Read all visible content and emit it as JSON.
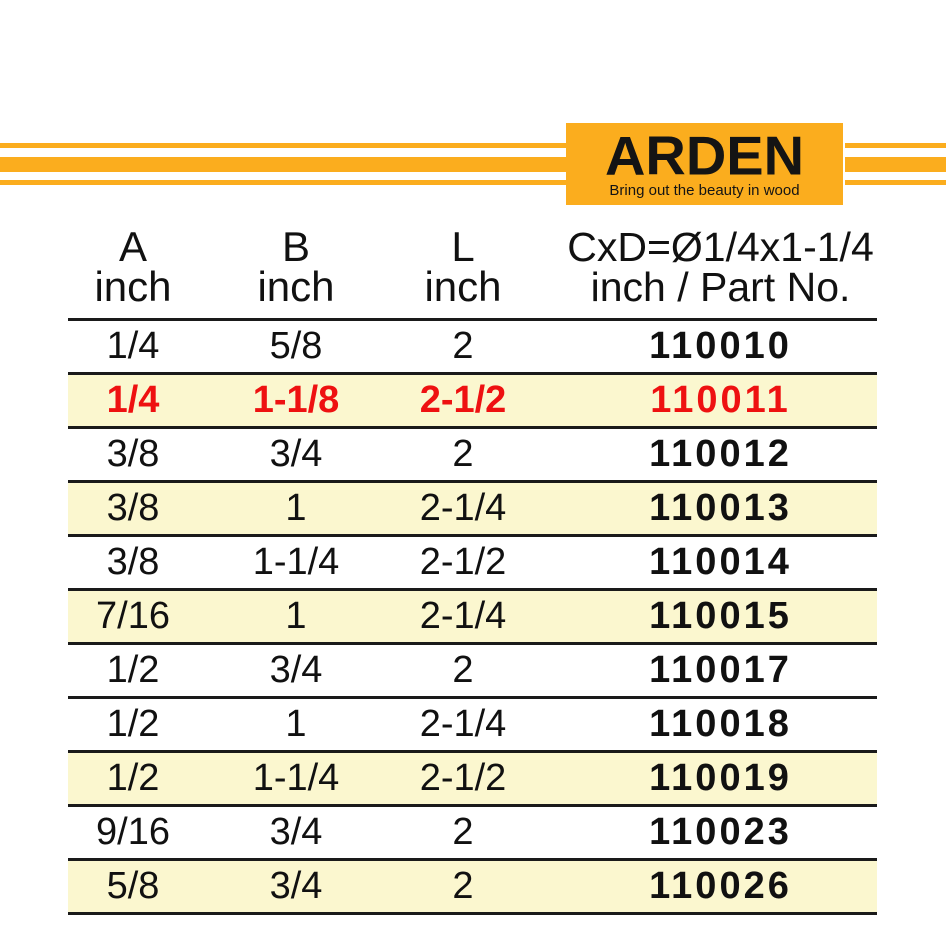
{
  "colors": {
    "orange": "#FBAD1E",
    "row_shade": "#FBF7CF",
    "highlight_text": "#EE1111",
    "rule": "#1A1A1A"
  },
  "logo": {
    "brand": "ARDEN",
    "tagline": "Bring out the beauty in wood"
  },
  "table": {
    "header": {
      "columns": [
        {
          "line1": "A",
          "line2": "inch"
        },
        {
          "line1": "B",
          "line2": "inch"
        },
        {
          "line1": "L",
          "line2": "inch"
        },
        {
          "line1": "CxD=Ø1/4x1-1/4",
          "line2": "inch / Part No."
        }
      ]
    },
    "rows": [
      {
        "a": "1/4",
        "b": "5/8",
        "l": "2",
        "part": "110010",
        "shaded": false,
        "highlight": false
      },
      {
        "a": "1/4",
        "b": "1-1/8",
        "l": "2-1/2",
        "part": "110011",
        "shaded": true,
        "highlight": true
      },
      {
        "a": "3/8",
        "b": "3/4",
        "l": "2",
        "part": "110012",
        "shaded": false,
        "highlight": false
      },
      {
        "a": "3/8",
        "b": "1",
        "l": "2-1/4",
        "part": "110013",
        "shaded": true,
        "highlight": false
      },
      {
        "a": "3/8",
        "b": "1-1/4",
        "l": "2-1/2",
        "part": "110014",
        "shaded": false,
        "highlight": false
      },
      {
        "a": "7/16",
        "b": "1",
        "l": "2-1/4",
        "part": "110015",
        "shaded": true,
        "highlight": false
      },
      {
        "a": "1/2",
        "b": "3/4",
        "l": "2",
        "part": "110017",
        "shaded": false,
        "highlight": false
      },
      {
        "a": "1/2",
        "b": "1",
        "l": "2-1/4",
        "part": "110018",
        "shaded": false,
        "highlight": false
      },
      {
        "a": "1/2",
        "b": "1-1/4",
        "l": "2-1/2",
        "part": "110019",
        "shaded": true,
        "highlight": false
      },
      {
        "a": "9/16",
        "b": "3/4",
        "l": "2",
        "part": "110023",
        "shaded": false,
        "highlight": false
      },
      {
        "a": "5/8",
        "b": "3/4",
        "l": "2",
        "part": "110026",
        "shaded": true,
        "highlight": false
      }
    ]
  }
}
